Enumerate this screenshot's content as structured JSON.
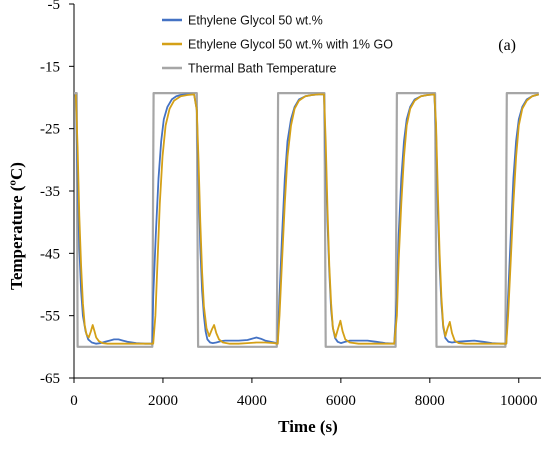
{
  "chart_data": {
    "type": "line",
    "panel_label": "(a)",
    "xlabel": "Time (s)",
    "ylabel": "Temperature (ºC)",
    "xlim": [
      0,
      10500
    ],
    "ylim": [
      -65,
      -5
    ],
    "xticks": [
      0,
      2000,
      4000,
      6000,
      8000,
      10000
    ],
    "yticks": [
      -65,
      -55,
      -45,
      -35,
      -25,
      -15,
      -5
    ],
    "legend_position": "top-center",
    "grid": false,
    "series": [
      {
        "name": "Ethylene Glycol 50 wt.%",
        "color": "#4472c4",
        "x": [
          40,
          80,
          120,
          160,
          200,
          260,
          320,
          400,
          500,
          600,
          700,
          800,
          900,
          1000,
          1100,
          1200,
          1400,
          1600,
          1760,
          1780,
          1840,
          1900,
          1960,
          2020,
          2100,
          2200,
          2300,
          2400,
          2500,
          2600,
          2700,
          2760,
          2800,
          2840,
          2880,
          2920,
          2960,
          3000,
          3060,
          3120,
          3200,
          3300,
          3400,
          3500,
          3700,
          3900,
          4000,
          4100,
          4200,
          4300,
          4500,
          4580,
          4620,
          4680,
          4740,
          4800,
          4880,
          4960,
          5060,
          5200,
          5350,
          5500,
          5620,
          5660,
          5700,
          5740,
          5780,
          5820,
          5870,
          5930,
          6000,
          6100,
          6200,
          6400,
          6600,
          6800,
          7000,
          7200,
          7260,
          7300,
          7360,
          7420,
          7480,
          7560,
          7660,
          7800,
          7950,
          8100,
          8140,
          8180,
          8220,
          8260,
          8300,
          8350,
          8420,
          8500,
          8600,
          8800,
          9000,
          9200,
          9400,
          9600,
          9720,
          9760,
          9820,
          9880,
          9940,
          10000,
          10080,
          10180,
          10300,
          10400,
          10450
        ],
        "y": [
          -19.5,
          -33,
          -44,
          -51,
          -55,
          -57.5,
          -58.8,
          -59.3,
          -59.5,
          -59.4,
          -59.2,
          -59,
          -58.8,
          -58.8,
          -59,
          -59.2,
          -59.4,
          -59.5,
          -59.5,
          -52,
          -42,
          -33,
          -27,
          -23.5,
          -21.5,
          -20.3,
          -19.8,
          -19.6,
          -19.5,
          -19.5,
          -19.5,
          -22,
          -33,
          -44,
          -51,
          -55,
          -57.5,
          -58.8,
          -59.3,
          -59.4,
          -59.3,
          -59.1,
          -59,
          -59,
          -59,
          -58.9,
          -58.7,
          -58.5,
          -58.7,
          -59,
          -59.3,
          -59.5,
          -52,
          -42,
          -33,
          -27,
          -23.5,
          -21.5,
          -20.3,
          -19.8,
          -19.6,
          -19.5,
          -19.5,
          -30,
          -40,
          -48,
          -54,
          -57,
          -58.6,
          -59.2,
          -59.4,
          -59.2,
          -59,
          -59,
          -59,
          -59.2,
          -59.4,
          -59.5,
          -52,
          -42,
          -33,
          -27,
          -23.5,
          -21.5,
          -20.3,
          -19.8,
          -19.6,
          -19.5,
          -25,
          -38,
          -47,
          -53,
          -56.8,
          -58.6,
          -59.2,
          -59.3,
          -59.2,
          -59.1,
          -59,
          -59.2,
          -59.4,
          -59.5,
          -59.5,
          -52,
          -42,
          -33,
          -27,
          -23.5,
          -21.5,
          -20.3,
          -19.8,
          -19.6,
          -19.5
        ]
      },
      {
        "name": "Ethylene Glycol 50 wt.% with 1% GO",
        "color": "#d4a017",
        "x": [
          40,
          80,
          120,
          160,
          200,
          240,
          280,
          330,
          380,
          420,
          460,
          500,
          560,
          640,
          750,
          900,
          1100,
          1300,
          1500,
          1700,
          1780,
          1830,
          1880,
          1930,
          1990,
          2060,
          2150,
          2250,
          2400,
          2550,
          2700,
          2760,
          2800,
          2840,
          2880,
          2920,
          2980,
          3040,
          3100,
          3150,
          3200,
          3260,
          3350,
          3500,
          3700,
          3900,
          4100,
          4300,
          4500,
          4580,
          4620,
          4680,
          4740,
          4800,
          4880,
          4960,
          5060,
          5200,
          5350,
          5500,
          5620,
          5660,
          5700,
          5740,
          5780,
          5820,
          5880,
          5940,
          5990,
          6040,
          6100,
          6200,
          6400,
          6600,
          6800,
          7000,
          7200,
          7260,
          7300,
          7360,
          7420,
          7480,
          7560,
          7660,
          7800,
          7950,
          8100,
          8140,
          8180,
          8220,
          8260,
          8300,
          8350,
          8400,
          8450,
          8500,
          8560,
          8650,
          8800,
          9000,
          9200,
          9400,
          9600,
          9720,
          9760,
          9820,
          9880,
          9940,
          10000,
          10080,
          10180,
          10300,
          10400,
          10450
        ],
        "y": [
          -19.5,
          -28,
          -39,
          -47,
          -53,
          -56.5,
          -58,
          -58.5,
          -57.5,
          -56.5,
          -57.5,
          -58.5,
          -59.1,
          -59.4,
          -59.5,
          -59.5,
          -59.5,
          -59.5,
          -59.5,
          -59.5,
          -59.5,
          -55,
          -46,
          -37,
          -29.5,
          -24.5,
          -21.8,
          -20.5,
          -19.8,
          -19.6,
          -19.5,
          -22,
          -30,
          -40,
          -48,
          -53.5,
          -57,
          -58.3,
          -57.2,
          -56.5,
          -57.8,
          -58.8,
          -59.3,
          -59.5,
          -59.5,
          -59.4,
          -59.3,
          -59.3,
          -59.4,
          -59.5,
          -55,
          -46,
          -37,
          -29.5,
          -24.5,
          -21.8,
          -20.5,
          -19.8,
          -19.6,
          -19.5,
          -19.5,
          -27,
          -38,
          -47,
          -53,
          -57,
          -58.5,
          -57,
          -55.8,
          -57.5,
          -58.8,
          -59.3,
          -59.5,
          -59.5,
          -59.5,
          -59.5,
          -59.5,
          -55,
          -46,
          -37,
          -29.5,
          -24.5,
          -21.8,
          -20.5,
          -19.8,
          -19.6,
          -19.5,
          -24,
          -35,
          -45,
          -52,
          -56.5,
          -58.3,
          -57,
          -56,
          -57.8,
          -59,
          -59.4,
          -59.5,
          -59.5,
          -59.5,
          -59.5,
          -59.5,
          -59.5,
          -55,
          -46,
          -37,
          -29.5,
          -24.5,
          -21.8,
          -20.5,
          -19.8,
          -19.6,
          -19.5
        ]
      },
      {
        "name": "Thermal Bath Temperature",
        "color": "#a6a6a6",
        "x": [
          0,
          60,
          80,
          1760,
          1790,
          2760,
          2790,
          4560,
          4590,
          5630,
          5660,
          7230,
          7260,
          8120,
          8150,
          9700,
          9730,
          10450
        ],
        "y": [
          -19.3,
          -19.3,
          -60,
          -60,
          -19.3,
          -19.3,
          -60,
          -60,
          -19.3,
          -19.3,
          -60,
          -60,
          -19.3,
          -19.3,
          -60,
          -60,
          -19.3,
          -19.3
        ]
      }
    ]
  }
}
